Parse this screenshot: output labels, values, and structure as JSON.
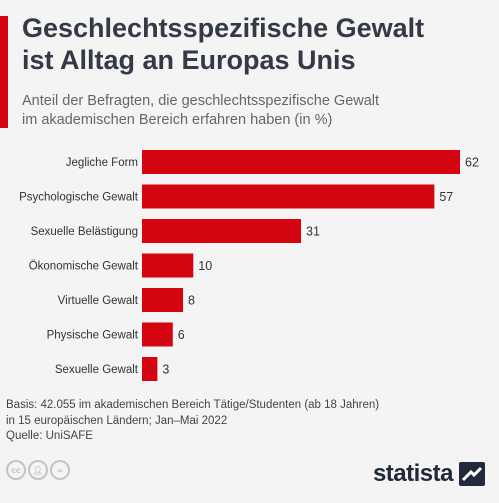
{
  "header": {
    "title_line1": "Geschlechtsspezifische Gewalt",
    "title_line2": "ist Alltag an Europas Unis",
    "subtitle_line1": "Anteil der Befragten, die geschlechtsspezifische Gewalt",
    "subtitle_line2": "im akademischen Bereich erfahren haben (in %)"
  },
  "colors": {
    "accent": "#d40511",
    "bar": "#d40511",
    "text": "#3c3c3c",
    "background": "#f5f4f4"
  },
  "chart_data": {
    "type": "bar",
    "orientation": "horizontal",
    "title": "Geschlechtsspezifische Gewalt ist Alltag an Europas Unis",
    "subtitle": "Anteil der Befragten, die geschlechtsspezifische Gewalt im akademischen Bereich erfahren haben (in %)",
    "categories": [
      "Jegliche Form",
      "Psychologische Gewalt",
      "Sexuelle Belästigung",
      "Ökonomische Gewalt",
      "Virtuelle Gewalt",
      "Physische Gewalt",
      "Sexuelle Gewalt"
    ],
    "values": [
      62,
      57,
      31,
      10,
      8,
      6,
      3
    ],
    "xlim": [
      0,
      62
    ],
    "grid": false,
    "legend": false,
    "data_labels": true
  },
  "footer": {
    "note_line1": "Basis: 42.055 im akademischen Bereich Tätige/Studenten (ab 18 Jahren)",
    "note_line2": "in 15 europäischen Ländern; Jan–Mai 2022",
    "source": "Quelle: UniSAFE",
    "brand": "statista",
    "license_icons": [
      "cc-icon",
      "by-icon",
      "nd-icon"
    ]
  }
}
